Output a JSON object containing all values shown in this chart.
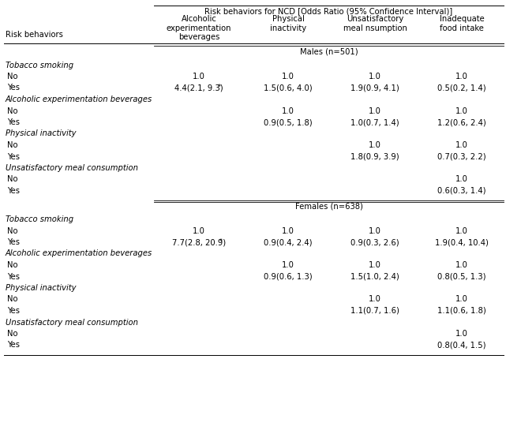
{
  "title_normal": "Risk behaviors for NCD [",
  "title_italic": "Odds Ratio",
  "title_end": " (95% Confidence Interval)]",
  "col_headers": [
    "Alcoholic\nexperimentation\nbeverages",
    "Physical\ninactivity",
    "Unsatisfactory\nmeal nsumption",
    "Inadequate\nfood intake"
  ],
  "row_header_label": "Risk behaviors",
  "sections": [
    {
      "section_label": "Males (n=501)",
      "groups": [
        {
          "group_label": "Tobacco smoking",
          "rows": [
            {
              "label": "No",
              "values": [
                "1.0",
                "1.0",
                "1.0",
                "1.0"
              ],
              "star_col": -1
            },
            {
              "label": "Yes",
              "values": [
                "4.4(2.1, 9.3)",
                "1.5(0.6, 4.0)",
                "1.9(0.9, 4.1)",
                "0.5(0.2, 1.4)"
              ],
              "star_col": 0
            }
          ]
        },
        {
          "group_label": "Alcoholic experimentation beverages",
          "rows": [
            {
              "label": "No",
              "values": [
                "",
                "1.0",
                "1.0",
                "1.0"
              ],
              "star_col": -1
            },
            {
              "label": "Yes",
              "values": [
                "",
                "0.9(0.5, 1.8)",
                "1.0(0.7, 1.4)",
                "1.2(0.6, 2.4)"
              ],
              "star_col": -1
            }
          ]
        },
        {
          "group_label": "Physical inactivity",
          "rows": [
            {
              "label": "No",
              "values": [
                "",
                "",
                "1.0",
                "1.0"
              ],
              "star_col": -1
            },
            {
              "label": "Yes",
              "values": [
                "",
                "",
                "1.8(0.9, 3.9)",
                "0.7(0.3, 2.2)"
              ],
              "star_col": -1
            }
          ]
        },
        {
          "group_label": "Unsatisfactory meal consumption",
          "rows": [
            {
              "label": "No",
              "values": [
                "",
                "",
                "",
                "1.0"
              ],
              "star_col": -1
            },
            {
              "label": "Yes",
              "values": [
                "",
                "",
                "",
                "0.6(0.3, 1.4)"
              ],
              "star_col": -1
            }
          ]
        }
      ]
    },
    {
      "section_label": "Females (n=638)",
      "groups": [
        {
          "group_label": "Tobacco smoking",
          "rows": [
            {
              "label": "No",
              "values": [
                "1.0",
                "1.0",
                "1.0",
                "1.0"
              ],
              "star_col": -1
            },
            {
              "label": "Yes",
              "values": [
                "7.7(2.8, 20.9)",
                "0.9(0.4, 2.4)",
                "0.9(0.3, 2.6)",
                "1.9(0.4, 10.4)"
              ],
              "star_col": 0
            }
          ]
        },
        {
          "group_label": "Alcoholic experimentation beverages",
          "rows": [
            {
              "label": "No",
              "values": [
                "",
                "1.0",
                "1.0",
                "1.0"
              ],
              "star_col": -1
            },
            {
              "label": "Yes",
              "values": [
                "",
                "0.9(0.6, 1.3)",
                "1.5(1.0, 2.4)",
                "0.8(0.5, 1.3)"
              ],
              "star_col": -1
            }
          ]
        },
        {
          "group_label": "Physical inactivity",
          "rows": [
            {
              "label": "No",
              "values": [
                "",
                "",
                "1.0",
                "1.0"
              ],
              "star_col": -1
            },
            {
              "label": "Yes",
              "values": [
                "",
                "",
                "1.1(0.7, 1.6)",
                "1.1(0.6, 1.8)"
              ],
              "star_col": -1
            }
          ]
        },
        {
          "group_label": "Unsatisfactory meal consumption",
          "rows": [
            {
              "label": "No",
              "values": [
                "",
                "",
                "",
                "1.0"
              ],
              "star_col": -1
            },
            {
              "label": "Yes",
              "values": [
                "",
                "",
                "",
                "0.8(0.4, 1.5)"
              ],
              "star_col": -1
            }
          ]
        }
      ]
    }
  ],
  "bg_color": "#ffffff",
  "text_color": "#000000"
}
